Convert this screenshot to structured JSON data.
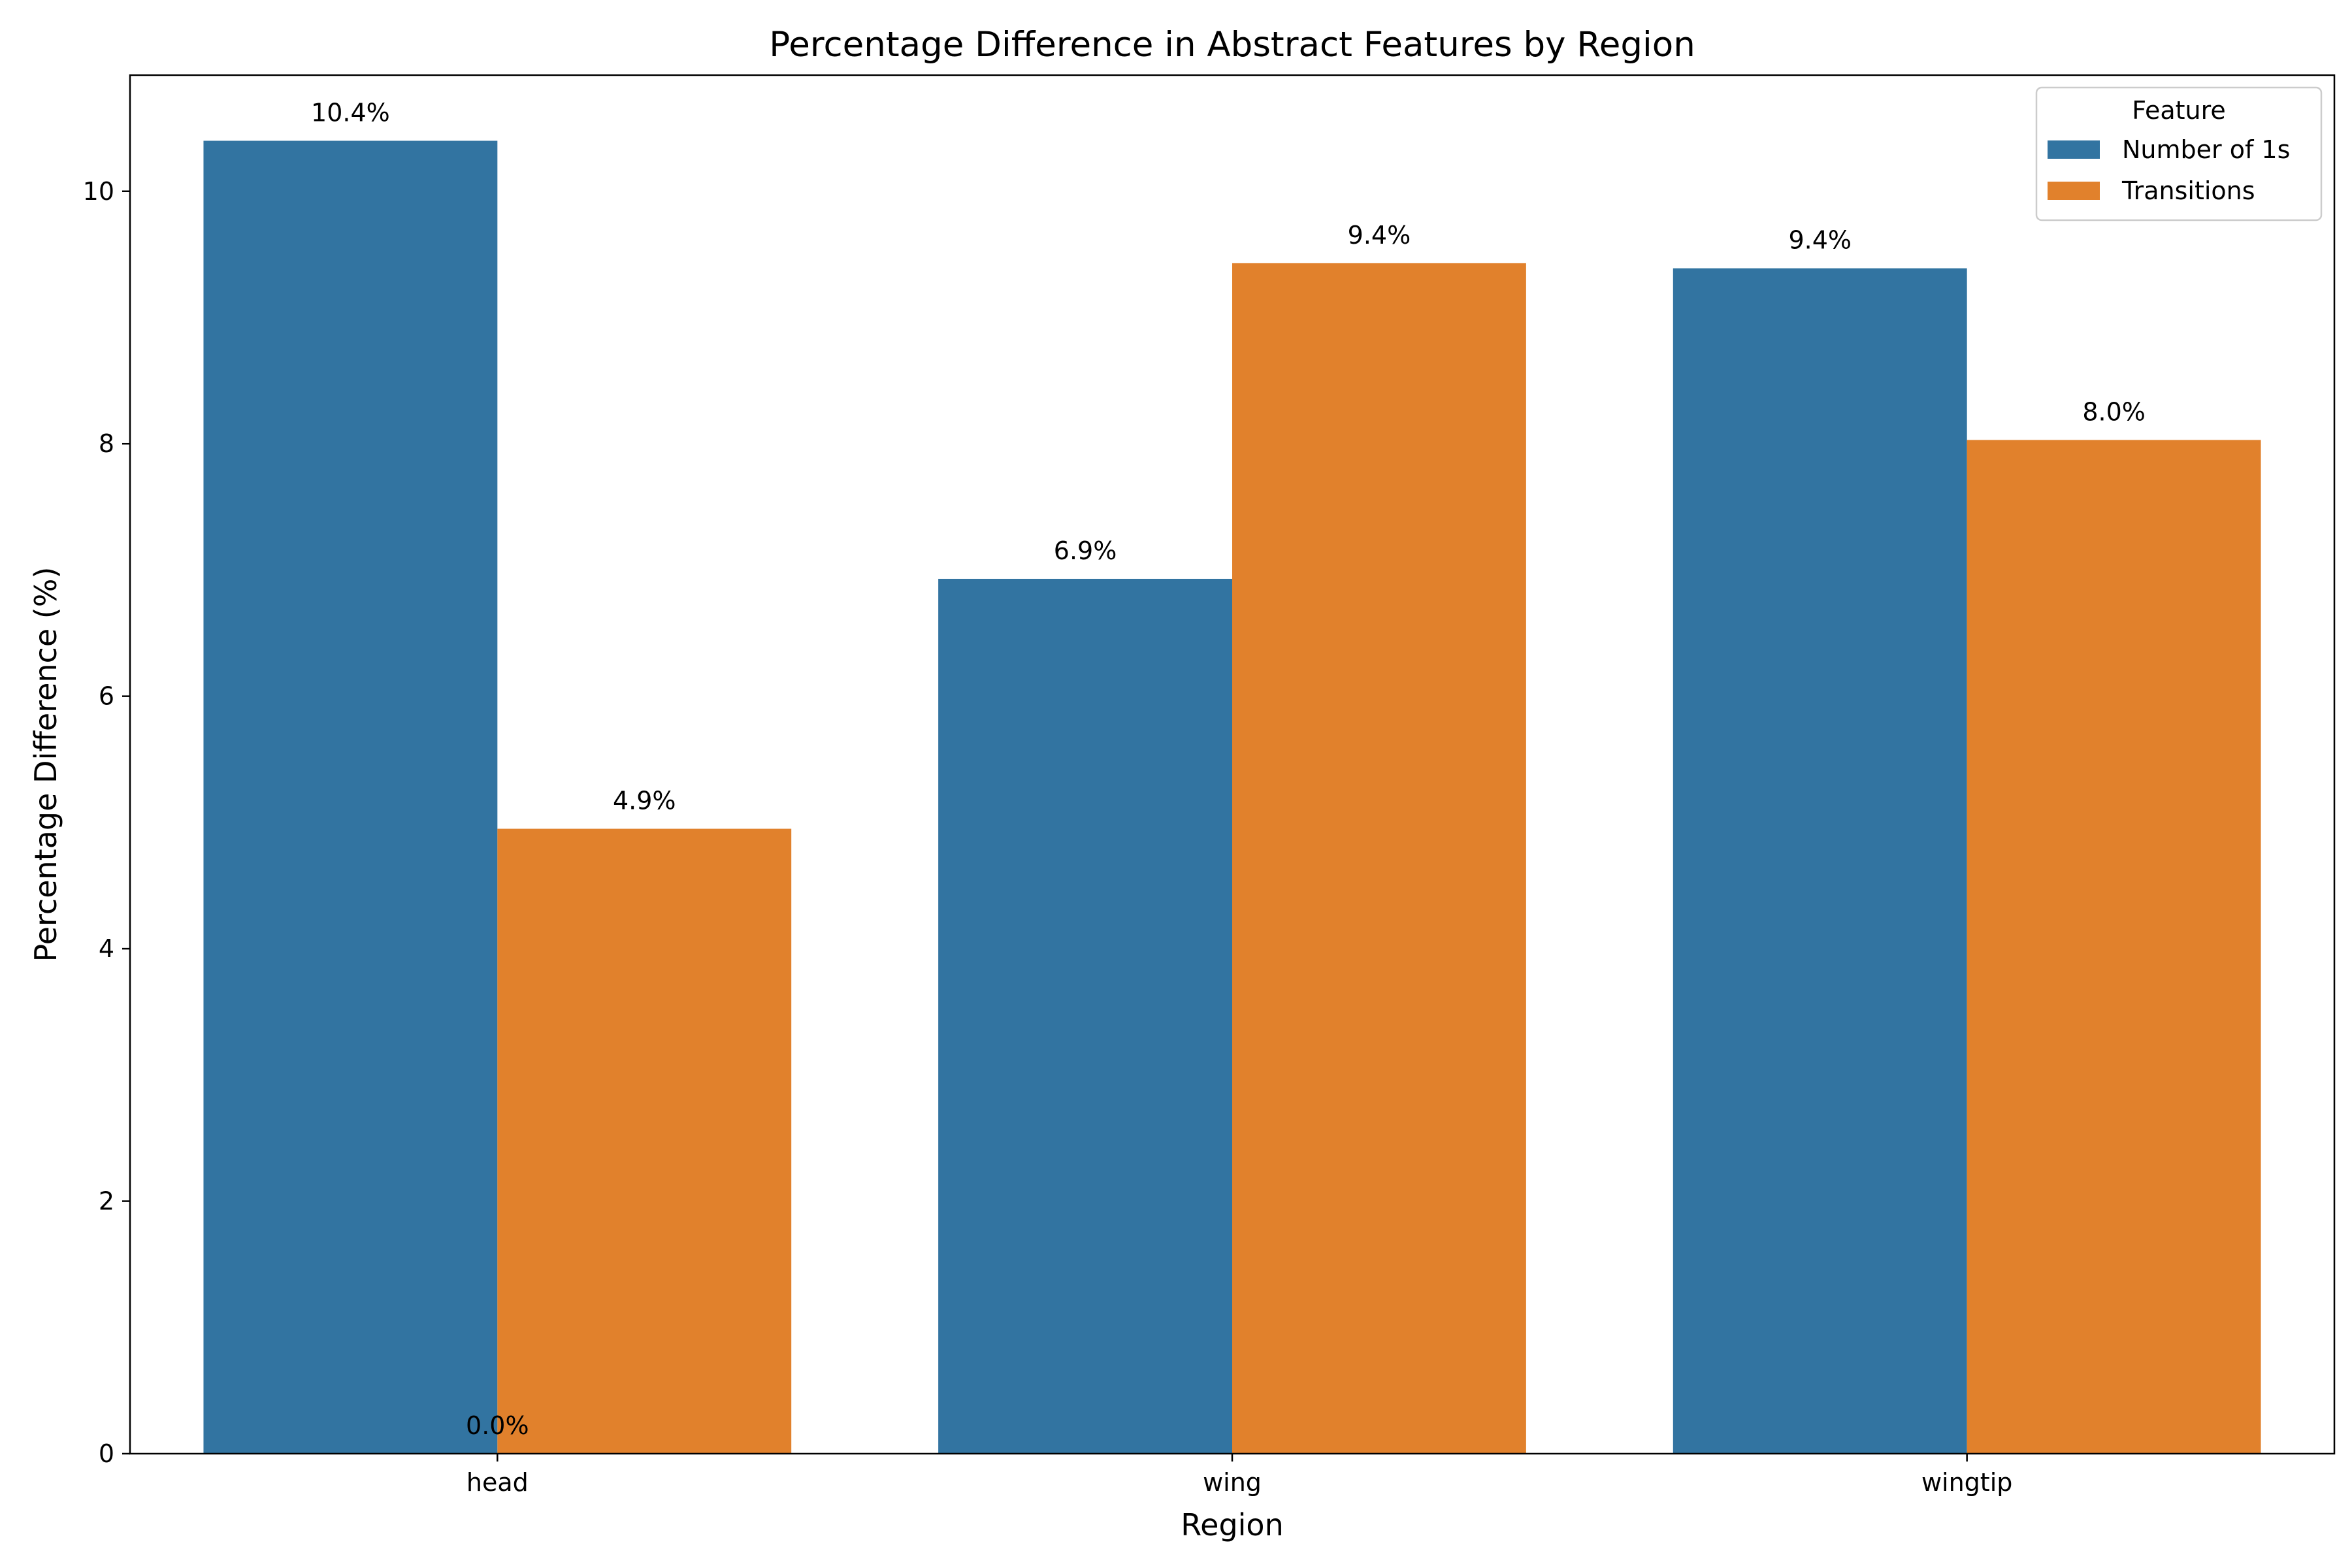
{
  "chart_data": {
    "type": "bar",
    "title": "Percentage Difference in Abstract Features by Region",
    "xlabel": "Region",
    "ylabel": "Percentage Difference (%)",
    "categories": [
      "head",
      "wing",
      "wingtip"
    ],
    "series": [
      {
        "name": "Number of 1s",
        "color": "#3274a1",
        "values": [
          10.4,
          6.93,
          9.39
        ],
        "labels": [
          "10.4%",
          "6.9%",
          "9.4%"
        ]
      },
      {
        "name": "Transitions",
        "color": "#e1812c",
        "values": [
          4.95,
          9.43,
          8.03
        ],
        "labels": [
          "4.9%",
          "9.4%",
          "8.0%"
        ]
      }
    ],
    "extra_annotations": [
      {
        "text": "0.0%",
        "category": "head",
        "value": 0
      }
    ],
    "yticks": [
      0,
      2,
      4,
      6,
      8,
      10
    ],
    "ylim": [
      0,
      10.92
    ],
    "grid": false,
    "legend": {
      "title": "Feature",
      "placement": "top-right"
    }
  }
}
